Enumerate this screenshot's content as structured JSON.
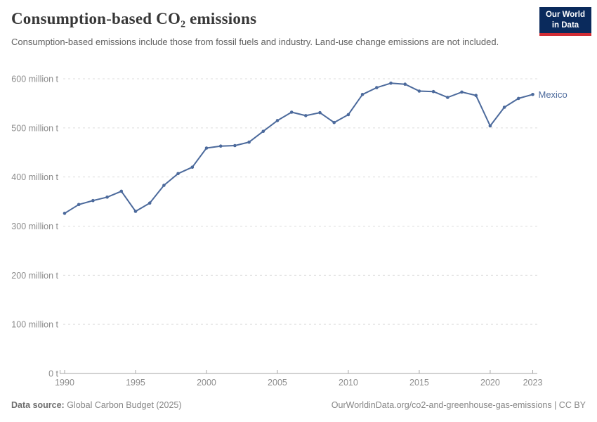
{
  "header": {
    "title": "Consumption-based CO₂ emissions",
    "subtitle": "Consumption-based emissions include those from fossil fuels and industry. Land-use change emissions are not included.",
    "logo": {
      "line1": "Our World",
      "line2": "in Data"
    }
  },
  "chart_data": {
    "type": "line",
    "title": "Consumption-based CO₂ emissions",
    "unit": "million t",
    "xlabel": "",
    "ylabel": "",
    "ylim": [
      0,
      600
    ],
    "grid": "horizontal-dashed",
    "legend_position": "end-of-line-label",
    "x": [
      1990,
      1991,
      1992,
      1993,
      1994,
      1995,
      1996,
      1997,
      1998,
      1999,
      2000,
      2001,
      2002,
      2003,
      2004,
      2005,
      2006,
      2007,
      2008,
      2009,
      2010,
      2011,
      2012,
      2013,
      2014,
      2015,
      2016,
      2017,
      2018,
      2019,
      2020,
      2021,
      2022,
      2023
    ],
    "series": [
      {
        "name": "Mexico",
        "color": "#4c6a9c",
        "values": [
          326,
          344,
          352,
          359,
          371,
          330,
          347,
          383,
          407,
          420,
          459,
          463,
          464,
          471,
          493,
          515,
          532,
          525,
          531,
          511,
          527,
          568,
          582,
          591,
          589,
          575,
          574,
          562,
          573,
          566,
          504,
          542,
          560,
          568
        ]
      }
    ],
    "yticks": [
      {
        "value": 600,
        "label": "600 million t"
      },
      {
        "value": 500,
        "label": "500 million t"
      },
      {
        "value": 400,
        "label": "400 million t"
      },
      {
        "value": 300,
        "label": "300 million t"
      },
      {
        "value": 200,
        "label": "200 million t"
      },
      {
        "value": 100,
        "label": "100 million t"
      },
      {
        "value": 0,
        "label": "0 t"
      }
    ],
    "xticks": [
      1990,
      1995,
      2000,
      2005,
      2010,
      2015,
      2020,
      2023
    ]
  },
  "footer": {
    "source_label": "Data source:",
    "source_value": "Global Carbon Budget (2025)",
    "attribution": "OurWorldinData.org/co2-and-greenhouse-gas-emissions | CC BY"
  },
  "colors": {
    "series_blue": "#4c6a9c",
    "grid": "#dcdcdc",
    "axis": "#a6a6a6",
    "tick_text": "#8c8c8c",
    "title_text": "#383838",
    "subtitle_text": "#616161",
    "logo_navy": "#0a2a5c",
    "logo_red": "#d12d35"
  }
}
